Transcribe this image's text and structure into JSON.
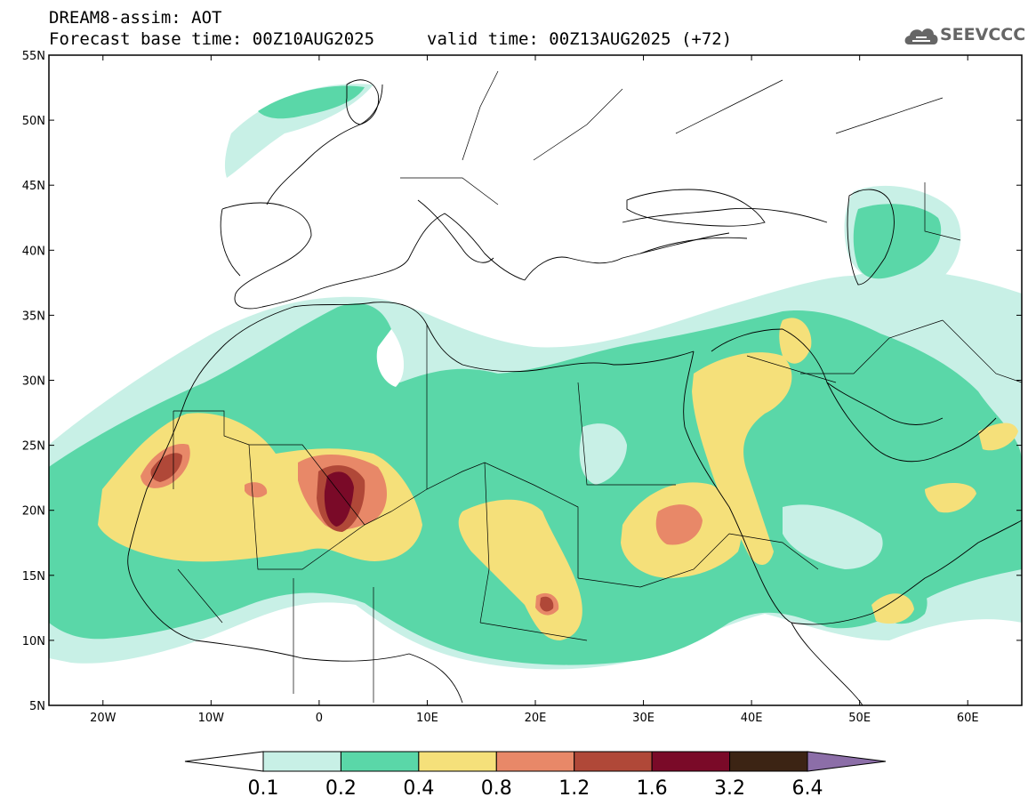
{
  "title": {
    "line1": "DREAM8-assim: AOT",
    "line2": "Forecast base time: 00Z10AUG2025",
    "valid": "valid time: 00Z13AUG2025 (+72)"
  },
  "logo": {
    "text": "SEEVCCC",
    "icon": "cloud-icon"
  },
  "map": {
    "lat_labels": [
      "55N",
      "50N",
      "45N",
      "40N",
      "35N",
      "30N",
      "25N",
      "20N",
      "15N",
      "10N",
      "5N"
    ],
    "lon_labels": [
      "20W",
      "10W",
      "0",
      "10E",
      "20E",
      "30E",
      "40E",
      "50E",
      "60E"
    ],
    "lon_range": [
      -25,
      65
    ],
    "lat_range": [
      5,
      55
    ]
  },
  "colorbar": {
    "labels": [
      "0.1",
      "0.2",
      "0.4",
      "0.8",
      "1.2",
      "1.6",
      "3.2",
      "6.4"
    ],
    "colors": [
      "#c8f0e6",
      "#5ad7a8",
      "#f5e07a",
      "#e88868",
      "#b04838",
      "#7a0a28",
      "#3c2414",
      "#8c6ea8"
    ]
  }
}
